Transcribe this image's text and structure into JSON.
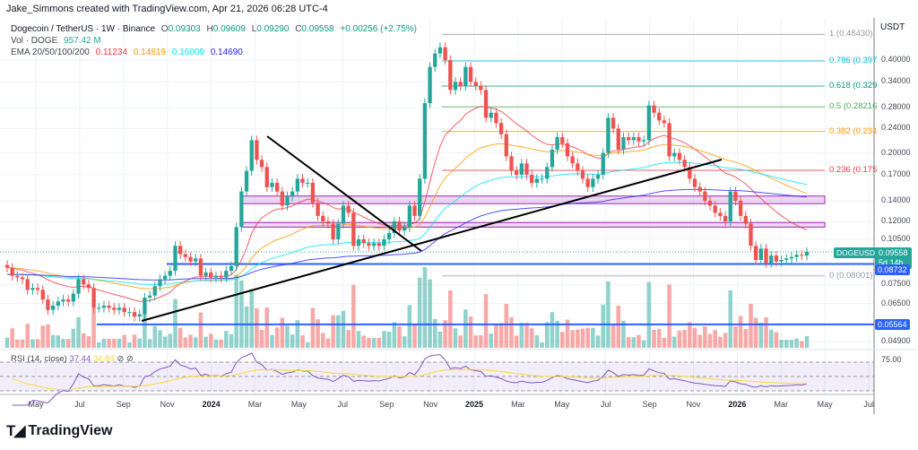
{
  "credit": "Jake_Simmons created with TradingView.com, Apr 21, 2026 06:28 UTC-4",
  "symbol": {
    "title": "Dogecoin / TetherUS · 1W · Binance",
    "o_label": "O",
    "o": "0.09303",
    "h_label": "H",
    "h": "0.09609",
    "l_label": "L",
    "l": "0.09290",
    "c_label": "C",
    "c": "0.09558",
    "change": "+0.00256 (+2.75%)"
  },
  "volume": {
    "label": "Vol · DOGE",
    "value": "957.42 M"
  },
  "ema": {
    "label": "EMA 20/50/100/200",
    "values": [
      "0.11234",
      "0.14819",
      "0.16009",
      "0.14690"
    ],
    "colors": [
      "#f23645",
      "#ff9800",
      "#00e5ff",
      "#2424ff"
    ]
  },
  "rsi": {
    "label": "RSI (14, close)",
    "value": "37.44",
    "ma": "34.84",
    "level_label": "75.00"
  },
  "axis": {
    "unit": "USDT",
    "price_ticks": [
      "0.40000",
      "0.34000",
      "0.28000",
      "0.24000",
      "0.20000",
      "0.17000",
      "0.14000",
      "0.12000",
      "0.10500",
      "0.07500",
      "0.06500",
      "0.04900"
    ]
  },
  "time_ticks": [
    {
      "t": "May"
    },
    {
      "t": "Jul"
    },
    {
      "t": "Sep"
    },
    {
      "t": "Nov"
    },
    {
      "t": "2024",
      "bold": true
    },
    {
      "t": "Mar"
    },
    {
      "t": "May"
    },
    {
      "t": "Jul"
    },
    {
      "t": "Sep"
    },
    {
      "t": "Nov"
    },
    {
      "t": "2025",
      "bold": true
    },
    {
      "t": "Mar"
    },
    {
      "t": "May"
    },
    {
      "t": "Jul"
    },
    {
      "t": "Sep"
    },
    {
      "t": "Nov"
    },
    {
      "t": "2026",
      "bold": true
    },
    {
      "t": "Mar"
    },
    {
      "t": "May"
    },
    {
      "t": "Jul"
    }
  ],
  "fib_levels": [
    {
      "label": "1 (0.48430)",
      "price": 0.4843,
      "color": "#9598a1"
    },
    {
      "label": "0.786 (0.397",
      "price": 0.3973,
      "color": "#00bcd4"
    },
    {
      "label": "0.618 (0.329",
      "price": 0.3295,
      "color": "#089981"
    },
    {
      "label": "0.5 (0.28216",
      "price": 0.28216,
      "color": "#4caf50"
    },
    {
      "label": "0.382 (0.234",
      "price": 0.2348,
      "color": "#ff9800"
    },
    {
      "label": "0.236 (0.175",
      "price": 0.1757,
      "color": "#f23645"
    },
    {
      "label": "0 (0.08001)",
      "price": 0.08001,
      "color": "#9598a1"
    }
  ],
  "price_tags": {
    "symbol": "DOGEUSDT",
    "last": "0.09558",
    "countdown": "5d 14h",
    "support1": "0.08732",
    "support2": "0.05564"
  },
  "colors": {
    "up": "#26a69a",
    "down": "#ef5350",
    "line": "#2962ff",
    "zone": "#9c27b0",
    "rsi": "#7e57c2",
    "rsi_ma": "#fdd835"
  },
  "brand": "TradingView",
  "chart_data": {
    "type": "candlestick",
    "interval": "1W",
    "scale": "log",
    "ylim": [
      0.045,
      0.5
    ],
    "closes": [
      0.085,
      0.08,
      0.079,
      0.078,
      0.072,
      0.073,
      0.072,
      0.067,
      0.062,
      0.064,
      0.066,
      0.067,
      0.066,
      0.07,
      0.078,
      0.075,
      0.073,
      0.063,
      0.063,
      0.064,
      0.063,
      0.062,
      0.063,
      0.061,
      0.061,
      0.059,
      0.06,
      0.068,
      0.069,
      0.074,
      0.078,
      0.08,
      0.083,
      0.1,
      0.094,
      0.092,
      0.089,
      0.091,
      0.08,
      0.082,
      0.079,
      0.08,
      0.079,
      0.083,
      0.086,
      0.115,
      0.15,
      0.175,
      0.22,
      0.19,
      0.18,
      0.155,
      0.16,
      0.15,
      0.135,
      0.145,
      0.15,
      0.165,
      0.16,
      0.16,
      0.138,
      0.125,
      0.12,
      0.118,
      0.105,
      0.118,
      0.135,
      0.128,
      0.1,
      0.105,
      0.102,
      0.1,
      0.102,
      0.1,
      0.105,
      0.11,
      0.12,
      0.112,
      0.115,
      0.135,
      0.125,
      0.165,
      0.29,
      0.38,
      0.42,
      0.44,
      0.4,
      0.32,
      0.34,
      0.33,
      0.38,
      0.34,
      0.33,
      0.32,
      0.26,
      0.27,
      0.25,
      0.23,
      0.195,
      0.175,
      0.17,
      0.185,
      0.17,
      0.16,
      0.165,
      0.165,
      0.18,
      0.205,
      0.225,
      0.215,
      0.195,
      0.185,
      0.175,
      0.165,
      0.155,
      0.165,
      0.17,
      0.2,
      0.26,
      0.24,
      0.205,
      0.225,
      0.22,
      0.225,
      0.218,
      0.22,
      0.285,
      0.27,
      0.255,
      0.25,
      0.195,
      0.2,
      0.19,
      0.18,
      0.165,
      0.155,
      0.15,
      0.14,
      0.135,
      0.128,
      0.125,
      0.12,
      0.15,
      0.14,
      0.125,
      0.118,
      0.1,
      0.09,
      0.098,
      0.088,
      0.093,
      0.089,
      0.09,
      0.091,
      0.092,
      0.0935,
      0.093,
      0.09558
    ],
    "horizontal_levels": [
      0.08732,
      0.05564
    ],
    "zones": [
      [
        0.137,
        0.145
      ],
      [
        0.115,
        0.119
      ]
    ]
  }
}
